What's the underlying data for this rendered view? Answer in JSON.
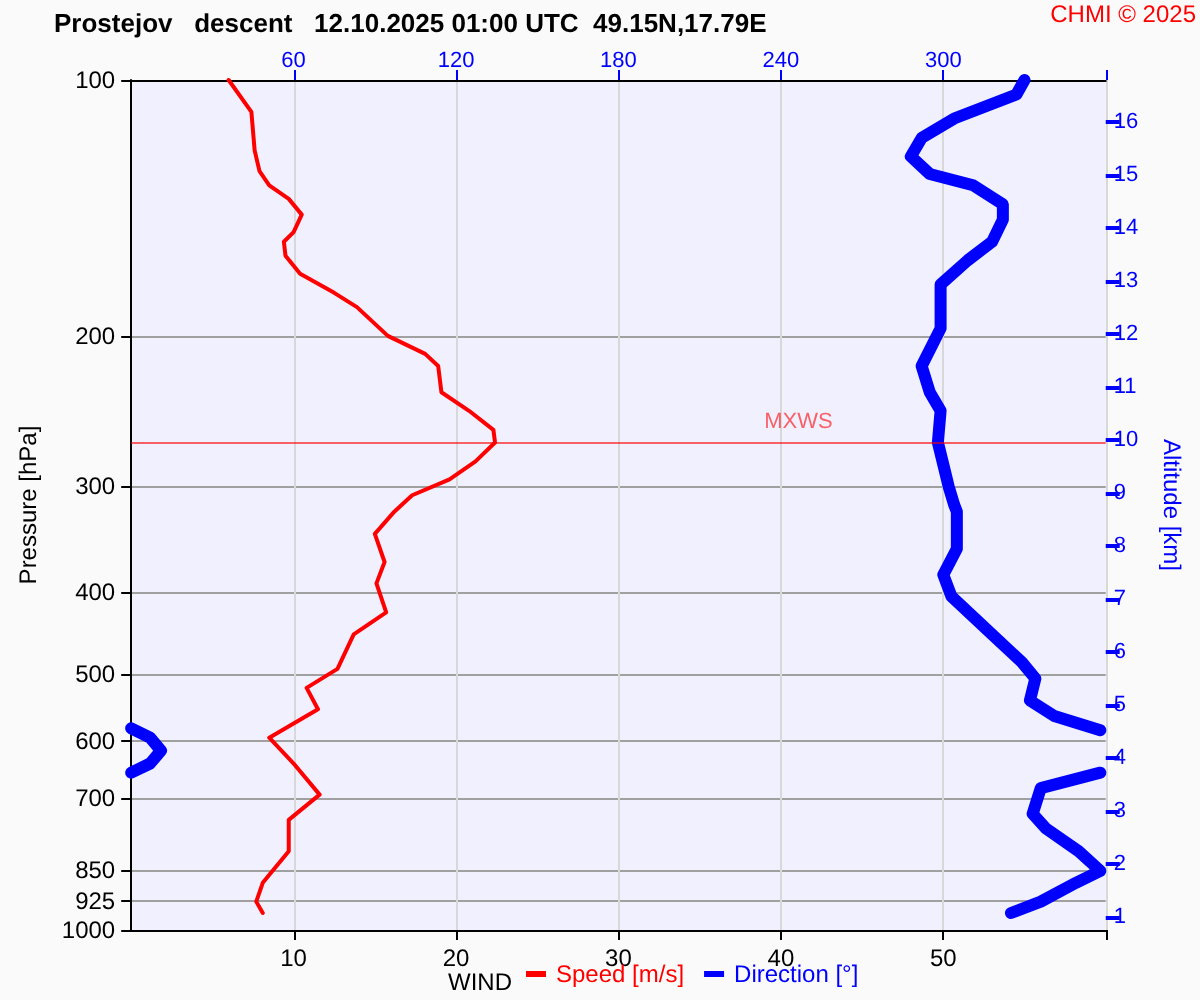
{
  "chart_data": {
    "type": "line",
    "title": "Prostejov   descent   12.10.2025 01:00 UTC  49.15N,17.79E",
    "xlabel": "WIND",
    "ylabel": "Pressure [hPa]",
    "y2label": "Altitude [km]",
    "annotations": [
      "CHMI © 2025"
    ],
    "series": [
      {
        "name": "Speed [m/s]",
        "color": "#ff0000",
        "x": [
          6.0,
          7.4,
          7.6,
          7.9,
          8.5,
          9.7,
          10.5,
          10.0,
          9.4,
          9.5,
          10.4,
          12.5,
          13.9,
          15.8,
          18.1,
          18.9,
          19.1,
          20.8,
          22.3,
          22.4,
          21.2,
          19.6,
          17.3,
          16.2,
          15.0,
          15.6,
          15.1,
          15.7,
          13.7,
          12.7,
          10.8,
          11.5,
          8.5,
          10.0,
          11.6,
          9.7,
          9.7,
          8.1,
          7.7,
          8.1
        ],
        "values": [
          100,
          109,
          121,
          128,
          133,
          138,
          144,
          151,
          155,
          161,
          169,
          178,
          185,
          200,
          210,
          217,
          233,
          245,
          258,
          267,
          281,
          295,
          308,
          322,
          342,
          369,
          391,
          423,
          449,
          493,
          519,
          550,
          594,
          637,
          693,
          742,
          808,
          880,
          926,
          955
        ]
      },
      {
        "name": "Direction [°]",
        "color": "#0000ff",
        "axis": "x2",
        "x": [
          330,
          327,
          304,
          292,
          288,
          295,
          311,
          322,
          322,
          318,
          309,
          299,
          299,
          299,
          292,
          295,
          299,
          298,
          302,
          304,
          305,
          305,
          300,
          303,
          318,
          329,
          334,
          332,
          341,
          358,
          null,
          null,
          0,
          7,
          11,
          7,
          0,
          null,
          358,
          336,
          333,
          338,
          350,
          358,
          349,
          336,
          325
        ],
        "values": [
          100,
          104,
          111,
          117,
          123,
          129,
          133,
          140,
          146,
          155,
          163,
          174,
          186,
          196,
          217,
          233,
          245,
          267,
          301,
          316,
          322,
          356,
          382,
          405,
          449,
          484,
          506,
          537,
          560,
          582,
          null,
          null,
          579,
          594,
          615,
          637,
          653,
          null,
          653,
          681,
          730,
          760,
          808,
          852,
          880,
          926,
          955
        ]
      }
    ],
    "xlim": [
      0,
      60
    ],
    "xticks": [
      10,
      20,
      30,
      40,
      50,
      {
        "value": 60,
        "label": null
      }
    ],
    "x2lim": [
      0,
      360
    ],
    "x2ticks": [
      60,
      120,
      180,
      240,
      300,
      {
        "value": 360,
        "label": null
      }
    ],
    "log": "y",
    "ylim": [
      1000,
      100
    ],
    "yticks": [
      100,
      200,
      300,
      400,
      500,
      600,
      700,
      850,
      925,
      1000
    ],
    "y2lim": [
      0.75,
      16.8
    ],
    "y2ticks": [
      1,
      2,
      3,
      4,
      5,
      6,
      7,
      8,
      9,
      10,
      11,
      12,
      13,
      14,
      15,
      16
    ],
    "ref_lines": [
      {
        "axis": "y",
        "value": 267,
        "label": "MXWS",
        "color": "#ff0000"
      }
    ],
    "grid": true,
    "legend": "bottom",
    "marker": "none",
    "line_style": "solid"
  }
}
